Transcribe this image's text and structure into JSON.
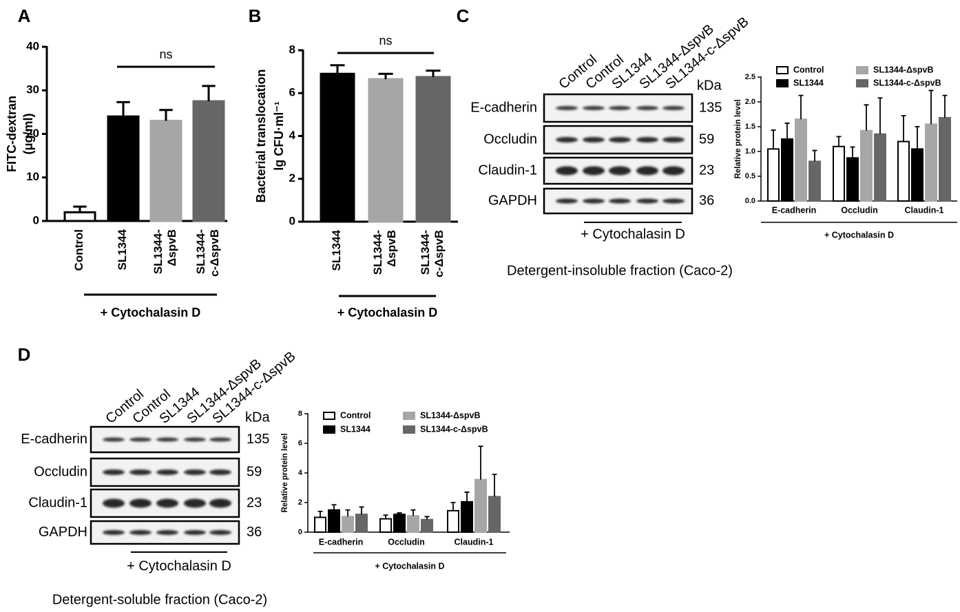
{
  "chart_data": [
    {
      "type": "bar",
      "label": "A",
      "ylabel": [
        "FITC-dextran",
        "(μg/ml)"
      ],
      "categories": [
        "Control",
        "SL1344",
        "SL1344-ΔspvB",
        "SL1344-c-ΔspvB"
      ],
      "values": [
        2,
        24,
        23,
        27.5
      ],
      "errors": [
        1.3,
        3.3,
        2.5,
        3.5
      ],
      "colors": [
        "#ffffff",
        "#000000",
        "#a6a6a6",
        "#666666"
      ],
      "ylim": [
        0,
        40
      ],
      "yticks": [
        0,
        10,
        20,
        30,
        40
      ],
      "annotation": "ns",
      "group_label": "+ Cytochalasin D"
    },
    {
      "type": "bar",
      "label": "B",
      "ylabel": [
        "Bacterial translocation",
        "lg CFU·ml⁻¹"
      ],
      "categories": [
        "SL1344",
        "SL1344-ΔspvB",
        "SL1344-c-ΔspvB"
      ],
      "values": [
        6.9,
        6.65,
        6.75
      ],
      "errors": [
        0.4,
        0.25,
        0.3
      ],
      "colors": [
        "#000000",
        "#a6a6a6",
        "#666666"
      ],
      "ylim": [
        0,
        8
      ],
      "yticks": [
        0,
        2,
        4,
        6,
        8
      ],
      "annotation": "ns",
      "group_label": "+ Cytochalasin D"
    },
    {
      "type": "grouped_bar",
      "ylabel": "Relative protein level",
      "categories": [
        "E-cadherin",
        "Occludin",
        "Claudin-1"
      ],
      "series": [
        {
          "name": "Control",
          "color": "#ffffff",
          "values": [
            1.05,
            1.1,
            1.2
          ],
          "errors": [
            0.38,
            0.2,
            0.52
          ]
        },
        {
          "name": "SL1344",
          "color": "#000000",
          "values": [
            1.25,
            0.87,
            1.05
          ],
          "errors": [
            0.32,
            0.22,
            0.45
          ]
        },
        {
          "name": "SL1344-ΔspvB",
          "color": "#a6a6a6",
          "values": [
            1.65,
            1.42,
            1.55
          ],
          "errors": [
            0.48,
            0.52,
            0.68
          ]
        },
        {
          "name": "SL1344-c-ΔspvB",
          "color": "#666666",
          "values": [
            0.8,
            1.35,
            1.68
          ],
          "errors": [
            0.22,
            0.73,
            0.45
          ]
        }
      ],
      "ylim": [
        0,
        2.5
      ],
      "yticks": [
        {
          "value": 0,
          "label": "0.0"
        },
        0.5,
        {
          "value": 1,
          "label": "1.0"
        },
        1.5,
        {
          "value": 2,
          "label": "2.0"
        },
        2.5
      ],
      "group_label": "+ Cytochalasin D"
    },
    {
      "type": "grouped_bar",
      "ylabel": "Relative protein level",
      "categories": [
        "E-cadherin",
        "Occludin",
        "Claudin-1"
      ],
      "series": [
        {
          "name": "Control",
          "color": "#ffffff",
          "values": [
            1.0,
            0.9,
            1.45
          ],
          "errors": [
            0.4,
            0.25,
            0.55
          ]
        },
        {
          "name": "SL1344",
          "color": "#000000",
          "values": [
            1.5,
            1.2,
            2.05
          ],
          "errors": [
            0.35,
            0.1,
            0.65
          ]
        },
        {
          "name": "SL1344-ΔspvB",
          "color": "#a6a6a6",
          "values": [
            1.05,
            1.1,
            3.55
          ],
          "errors": [
            0.45,
            0.4,
            2.25
          ]
        },
        {
          "name": "SL1344-c-ΔspvB",
          "color": "#666666",
          "values": [
            1.2,
            0.85,
            2.4
          ],
          "errors": [
            0.5,
            0.2,
            1.5
          ]
        }
      ],
      "ylim": [
        0,
        8
      ],
      "yticks": [
        0,
        2,
        4,
        6,
        8
      ],
      "group_label": "+ Cytochalasin D"
    }
  ],
  "blots": [
    {
      "label": "C",
      "lanes": [
        "Control",
        "Control",
        "SL1344",
        "SL1344-ΔspvB",
        "SL1344-c-ΔspvB"
      ],
      "unit": "kDa",
      "bands": [
        {
          "name": "E-cadherin",
          "kda": 135
        },
        {
          "name": "Occludin",
          "kda": 59
        },
        {
          "name": "Claudin-1",
          "kda": 23
        },
        {
          "name": "GAPDH",
          "kda": 36
        }
      ],
      "group_label": "+ Cytochalasin D",
      "caption": "Detergent-insoluble fraction (Caco-2)"
    },
    {
      "label": "D",
      "lanes": [
        "Control",
        "Control",
        "SL1344",
        "SL1344-ΔspvB",
        "SL1344-c-ΔspvB"
      ],
      "unit": "kDa",
      "bands": [
        {
          "name": "E-cadherin",
          "kda": 135
        },
        {
          "name": "Occludin",
          "kda": 59
        },
        {
          "name": "Claudin-1",
          "kda": 23
        },
        {
          "name": "GAPDH",
          "kda": 36
        }
      ],
      "group_label": "+ Cytochalasin D",
      "caption": "Detergent-soluble fraction (Caco-2)"
    }
  ]
}
